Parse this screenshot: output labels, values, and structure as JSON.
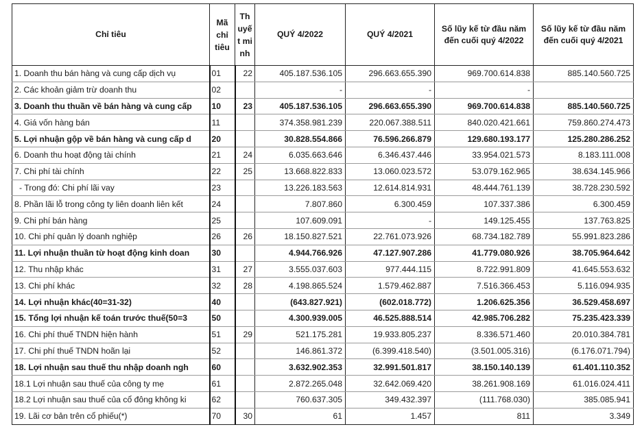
{
  "headers": {
    "chi_tieu": "Chỉ tiêu",
    "ma_chi_tieu": "Mã chỉ tiêu",
    "thuyet_minh": "Th uyế t mi nh",
    "q4_2022": "QUÝ 4/2022",
    "q4_2021": "QUÝ 4/2021",
    "ytd_2022": "Số lũy kế từ đầu năm đến cuối quý 4/2022",
    "ytd_2021": "Số lũy kế từ đầu năm đến cuối quý 4/2021"
  },
  "rows": [
    {
      "label": "1. Doanh thu bán hàng và cung cấp dịch vụ",
      "code": "01",
      "note": "22",
      "q4_2022": "405.187.536.105",
      "q4_2021": "296.663.655.390",
      "ytd_2022": "969.700.614.838",
      "ytd_2021": "885.140.560.725",
      "bold": false
    },
    {
      "label": "2. Các khoản giảm trừ doanh thu",
      "code": "02",
      "note": "",
      "q4_2022": "-",
      "q4_2021": "-",
      "ytd_2022": "-",
      "ytd_2021": "",
      "bold": false
    },
    {
      "label": "3. Doanh thu thuần về bán hàng và cung cấp",
      "code": "10",
      "note": "23",
      "q4_2022": "405.187.536.105",
      "q4_2021": "296.663.655.390",
      "ytd_2022": "969.700.614.838",
      "ytd_2021": "885.140.560.725",
      "bold": true
    },
    {
      "label": "4. Giá vốn hàng bán",
      "code": "11",
      "note": "",
      "q4_2022": "374.358.981.239",
      "q4_2021": "220.067.388.511",
      "ytd_2022": "840.020.421.661",
      "ytd_2021": "759.860.274.473",
      "bold": false
    },
    {
      "label": "5. Lợi nhuận gộp về bán hàng và cung cấp d",
      "code": "20",
      "note": "",
      "q4_2022": "30.828.554.866",
      "q4_2021": "76.596.266.879",
      "ytd_2022": "129.680.193.177",
      "ytd_2021": "125.280.286.252",
      "bold": true
    },
    {
      "label": "6. Doanh thu hoạt động tài chính",
      "code": "21",
      "note": "24",
      "q4_2022": "6.035.663.646",
      "q4_2021": "6.346.437.446",
      "ytd_2022": "33.954.021.573",
      "ytd_2021": "8.183.111.008",
      "bold": false
    },
    {
      "label": "7. Chi phí tài chính",
      "code": "22",
      "note": "25",
      "q4_2022": "13.668.822.833",
      "q4_2021": "13.060.023.572",
      "ytd_2022": "53.079.162.965",
      "ytd_2021": "38.634.145.966",
      "bold": false
    },
    {
      "label": "  - Trong đó: Chi phí lãi vay",
      "code": "23",
      "note": "",
      "q4_2022": "13.226.183.563",
      "q4_2021": "12.614.814.931",
      "ytd_2022": "48.444.761.139",
      "ytd_2021": "38.728.230.592",
      "bold": false
    },
    {
      "label": "8. Phần lãi lỗ trong công ty liên doanh liên kết",
      "code": "24",
      "note": "",
      "q4_2022": "7.807.860",
      "q4_2021": "6.300.459",
      "ytd_2022": "107.337.386",
      "ytd_2021": "6.300.459",
      "bold": false
    },
    {
      "label": "9. Chi phí bán hàng",
      "code": "25",
      "note": "",
      "q4_2022": "107.609.091",
      "q4_2021": "-",
      "ytd_2022": "149.125.455",
      "ytd_2021": "137.763.825",
      "bold": false
    },
    {
      "label": "10. Chi phí quản lý doanh nghiệp",
      "code": "26",
      "note": "26",
      "q4_2022": "18.150.827.521",
      "q4_2021": "22.761.073.926",
      "ytd_2022": "68.734.182.789",
      "ytd_2021": "55.991.823.286",
      "bold": false
    },
    {
      "label": "11. Lợi nhuận thuần từ hoạt động kinh doan",
      "code": "30",
      "note": "",
      "q4_2022": "4.944.766.926",
      "q4_2021": "47.127.907.286",
      "ytd_2022": "41.779.080.926",
      "ytd_2021": "38.705.964.642",
      "bold": true
    },
    {
      "label": "12. Thu nhập khác",
      "code": "31",
      "note": "27",
      "q4_2022": "3.555.037.603",
      "q4_2021": "977.444.115",
      "ytd_2022": "8.722.991.809",
      "ytd_2021": "41.645.553.632",
      "bold": false
    },
    {
      "label": "13. Chi phí khác",
      "code": "32",
      "note": "28",
      "q4_2022": "4.198.865.524",
      "q4_2021": "1.579.462.887",
      "ytd_2022": "7.516.366.453",
      "ytd_2021": "5.116.094.935",
      "bold": false
    },
    {
      "label": "14. Lợi nhuận khác(40=31-32)",
      "code": "40",
      "note": "",
      "q4_2022": "(643.827.921)",
      "q4_2021": "(602.018.772)",
      "ytd_2022": "1.206.625.356",
      "ytd_2021": "36.529.458.697",
      "bold": true
    },
    {
      "label": "15. Tổng lợi nhuận kế toán trước thuế(50=3",
      "code": "50",
      "note": "",
      "q4_2022": "4.300.939.005",
      "q4_2021": "46.525.888.514",
      "ytd_2022": "42.985.706.282",
      "ytd_2021": "75.235.423.339",
      "bold": true
    },
    {
      "label": "16. Chi phí thuế TNDN hiện hành",
      "code": "51",
      "note": "29",
      "q4_2022": "521.175.281",
      "q4_2021": "19.933.805.237",
      "ytd_2022": "8.336.571.460",
      "ytd_2021": "20.010.384.781",
      "bold": false
    },
    {
      "label": "17. Chi phí thuế TNDN hoãn lại",
      "code": "52",
      "note": "",
      "q4_2022": "146.861.372",
      "q4_2021": "(6.399.418.540)",
      "ytd_2022": "(3.501.005.316)",
      "ytd_2021": "(6.176.071.794)",
      "bold": false
    },
    {
      "label": "18. Lợi nhuận sau thuế thu nhập doanh ngh",
      "code": "60",
      "note": "",
      "q4_2022": "3.632.902.353",
      "q4_2021": "32.991.501.817",
      "ytd_2022": "38.150.140.139",
      "ytd_2021": "61.401.110.352",
      "bold": true
    },
    {
      "label": "18.1 Lợi nhuận sau thuế của công ty mẹ",
      "code": "61",
      "note": "",
      "q4_2022": "2.872.265.048",
      "q4_2021": "32.642.069.420",
      "ytd_2022": "38.261.908.169",
      "ytd_2021": "61.016.024.411",
      "bold": false
    },
    {
      "label": "18.2 Lợi nhuận sau thuế của cổ đông không ki",
      "code": "62",
      "note": "",
      "q4_2022": "760.637.305",
      "q4_2021": "349.432.397",
      "ytd_2022": "(111.768.030)",
      "ytd_2021": "385.085.941",
      "bold": false
    },
    {
      "label": "19. Lãi cơ bản trên cổ phiếu(*)",
      "code": "70",
      "note": "30",
      "q4_2022": "61",
      "q4_2021": "1.457",
      "ytd_2022": "811",
      "ytd_2021": "3.349",
      "bold": false
    }
  ]
}
